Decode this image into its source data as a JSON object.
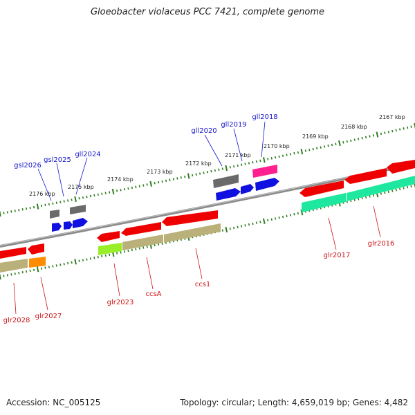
{
  "title": "Gloeobacter violaceus PCC 7421, complete genome",
  "footer": {
    "accession": "Accession: NC_005125",
    "topology": "Topology: circular; Length: 4,659,019 bp; Genes: 4,482"
  },
  "colors": {
    "backbone": "#8a8a8a",
    "tick_major": "#2e7d1e",
    "tick_minor": "#2e7d1e",
    "label_forward": "#1414cc",
    "label_reverse": "#cc1414"
  },
  "kbp_labels": [
    "2176 kbp",
    "2175 kbp",
    "2174 kbp",
    "2173 kbp",
    "2172 kbp",
    "2171 kbp",
    "2170 kbp",
    "2169 kbp",
    "2168 kbp",
    "2167 kbp"
  ],
  "gene_labels": {
    "forward": [
      "gsl2026",
      "gsl2025",
      "gll2024",
      "gll2020",
      "gll2019",
      "gll2018"
    ],
    "reverse": [
      "glr2028",
      "glr2027",
      "glr2023",
      "ccsA",
      "ccs1",
      "glr2017",
      "glr2016"
    ]
  }
}
